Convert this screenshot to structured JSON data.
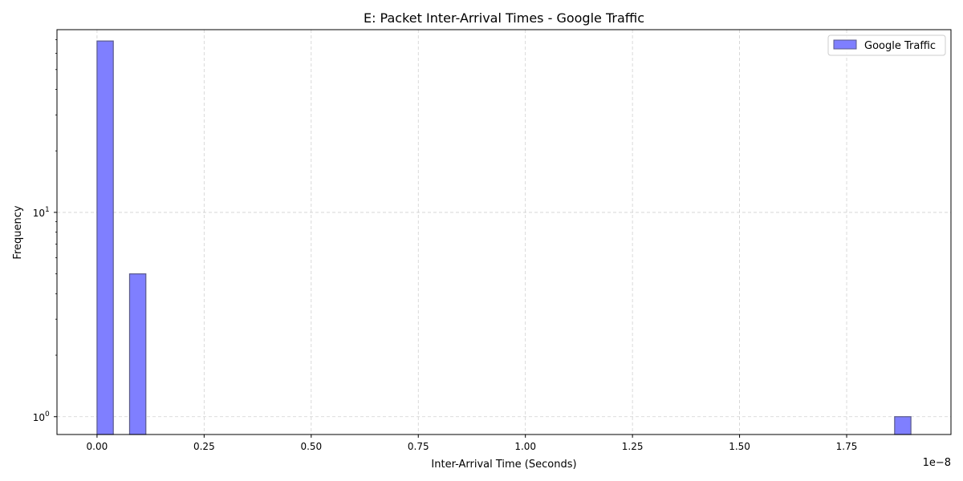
{
  "chart_data": {
    "type": "bar",
    "title": "E: Packet Inter-Arrival Times - Google Traffic",
    "xlabel": "Inter-Arrival Time (Seconds)",
    "ylabel": "Frequency",
    "x_offset_label": "1e−8",
    "y_scale": "log",
    "xlim": [
      -0.0935,
      1.9935
    ],
    "ylim": [
      0.818,
      78.4
    ],
    "x_ticks": [
      {
        "value": 0.0,
        "label": "0.00"
      },
      {
        "value": 0.25,
        "label": "0.25"
      },
      {
        "value": 0.5,
        "label": "0.50"
      },
      {
        "value": 0.75,
        "label": "0.75"
      },
      {
        "value": 1.0,
        "label": "1.00"
      },
      {
        "value": 1.25,
        "label": "1.25"
      },
      {
        "value": 1.5,
        "label": "1.50"
      },
      {
        "value": 1.75,
        "label": "1.75"
      }
    ],
    "y_ticks": [
      {
        "value": 1,
        "base": "10",
        "exp": "0"
      },
      {
        "value": 10,
        "base": "10",
        "exp": "1"
      }
    ],
    "grid": true,
    "legend_position": "top-right",
    "series": [
      {
        "name": "Google Traffic",
        "color": "#7f7fff",
        "edge_color": "#5a5a8a",
        "bins": [
          {
            "x0": 0.0,
            "x1": 0.038,
            "count": 69
          },
          {
            "x0": 0.076,
            "x1": 0.114,
            "count": 5
          },
          {
            "x0": 1.862,
            "x1": 1.9,
            "count": 1
          }
        ]
      }
    ]
  }
}
